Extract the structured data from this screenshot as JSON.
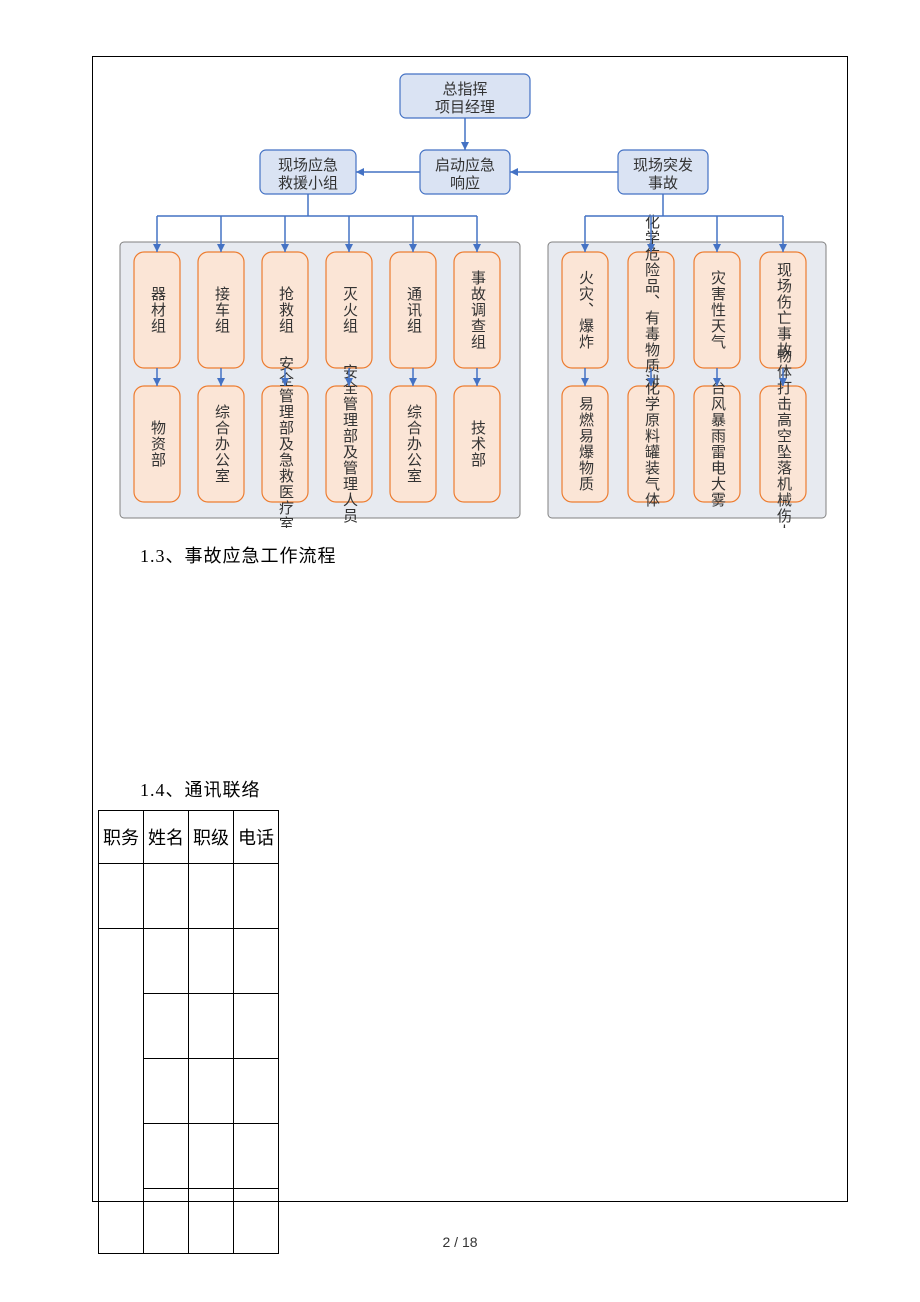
{
  "diagram": {
    "type": "flowchart",
    "colors": {
      "header_fill": "#dae3f3",
      "header_stroke": "#4472c4",
      "node_fill": "#fbe5d6",
      "node_stroke": "#ed7d31",
      "panel_fill": "#e7eaf0",
      "panel_stroke": "#808080",
      "connector": "#4472c4",
      "text": "#333333",
      "page_bg": "#ffffff"
    },
    "top": {
      "line1": "总指挥",
      "line2": "项目经理"
    },
    "row2": {
      "left": {
        "line1": "现场应急",
        "line2": "救援小组"
      },
      "mid": {
        "line1": "启动应急",
        "line2": "响应"
      },
      "right": {
        "line1": "现场突发",
        "line2": "事故"
      }
    },
    "leftGroup": {
      "top": [
        "器材组",
        "接车组",
        "抢救组",
        "灭火组",
        "通讯组",
        "事故调查组"
      ],
      "bottom": [
        "物资部",
        "综合办公室",
        "安全管理部及急救医疗室",
        "安全管理部及管理人员",
        "综合办公室",
        "技术部"
      ]
    },
    "rightGroup": {
      "top": [
        "火灾、爆炸",
        "化学危险品、有毒物质泄漏",
        "灾害性天气",
        "现场伤亡事故"
      ],
      "bottom": [
        "易燃易爆物质",
        "化学原料罐装气体",
        "台风暴雨雷电大雾",
        "物体打击高空坠落机械伤人"
      ]
    }
  },
  "sections": {
    "s13": "1.3、事故应急工作流程",
    "s14": "1.4、通讯联络"
  },
  "table": {
    "columns": [
      "职务",
      "姓名",
      "职级",
      "电话"
    ],
    "col_widths_percent": [
      25,
      25,
      25,
      25
    ],
    "rows": [
      [
        "",
        "",
        "",
        ""
      ],
      [
        "",
        "",
        "",
        ""
      ],
      [
        "",
        "",
        "",
        ""
      ],
      [
        "",
        "",
        "",
        ""
      ],
      [
        "",
        "",
        "",
        ""
      ],
      [
        "",
        "",
        "",
        ""
      ]
    ],
    "merged_first_col_from_row": 2
  },
  "footer": "2 / 18"
}
